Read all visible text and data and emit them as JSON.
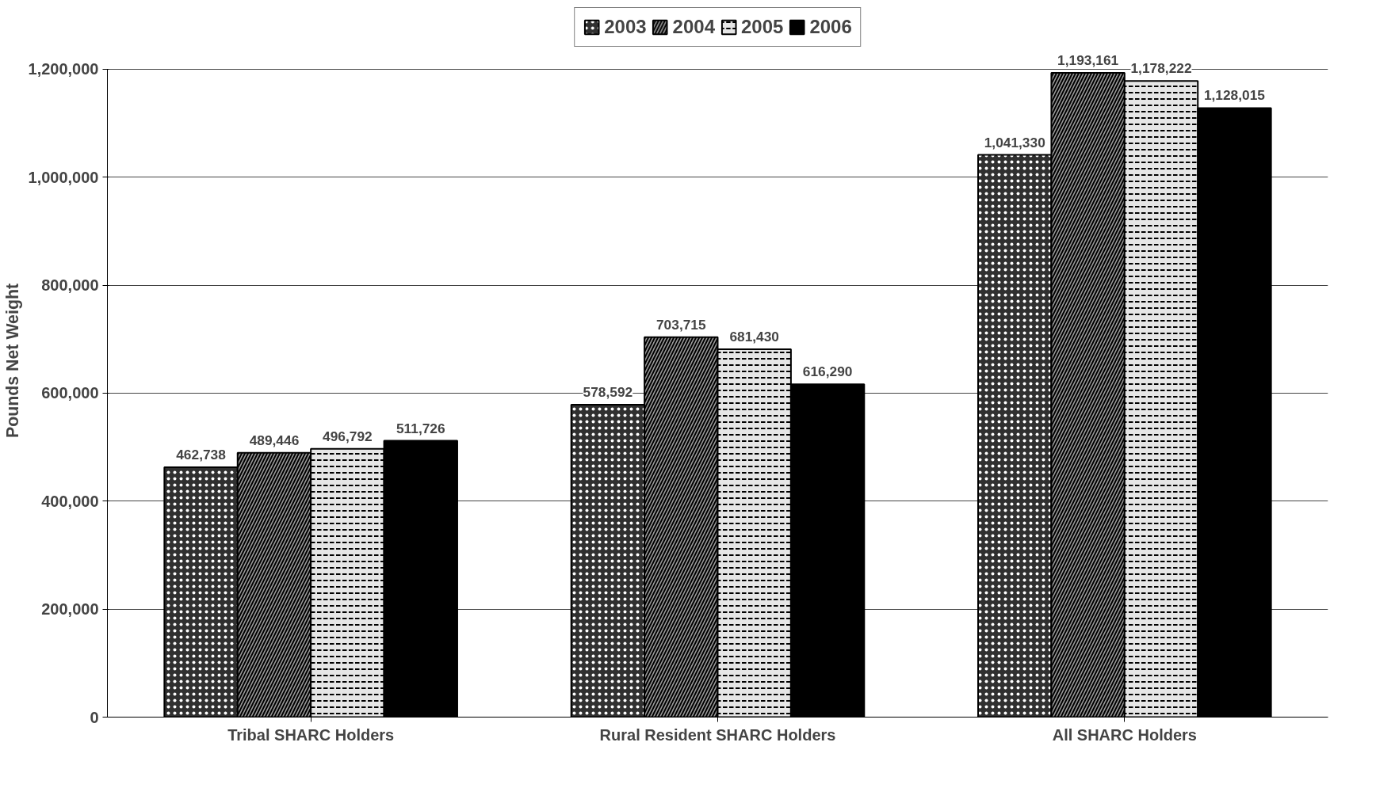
{
  "chart_data": {
    "type": "bar",
    "ylabel": "Pounds Net Weight",
    "categories": [
      "Tribal SHARC Holders",
      "Rural Resident SHARC Holders",
      "All SHARC Holders"
    ],
    "series": [
      {
        "name": "2003",
        "color": "#303030",
        "values": [
          462738,
          578592,
          1041330
        ],
        "value_labels": [
          "462,738",
          "578,592",
          "1,041,330"
        ]
      },
      {
        "name": "2004",
        "color": "#9a9a9a",
        "values": [
          489446,
          703715,
          1193161
        ],
        "value_labels": [
          "489,446",
          "703,715",
          "1,193,161"
        ]
      },
      {
        "name": "2005",
        "color": "#e6e6e6",
        "values": [
          496792,
          681430,
          1178222
        ],
        "value_labels": [
          "496,792",
          "681,430",
          "1,178,222"
        ]
      },
      {
        "name": "2006",
        "color": "#000000",
        "values": [
          511726,
          616290,
          1128015
        ],
        "value_labels": [
          "511,726",
          "616,290",
          "1,128,015"
        ]
      }
    ],
    "ylim": [
      0,
      1200000
    ],
    "yticks": [
      {
        "value": 0,
        "label": "0"
      },
      {
        "value": 200000,
        "label": "200,000"
      },
      {
        "value": 400000,
        "label": "400,000"
      },
      {
        "value": 600000,
        "label": "600,000"
      },
      {
        "value": 800000,
        "label": "800,000"
      },
      {
        "value": 1000000,
        "label": "1,000,000"
      },
      {
        "value": 1200000,
        "label": "1,200,000"
      }
    ],
    "grid": "y",
    "legend": "top"
  }
}
